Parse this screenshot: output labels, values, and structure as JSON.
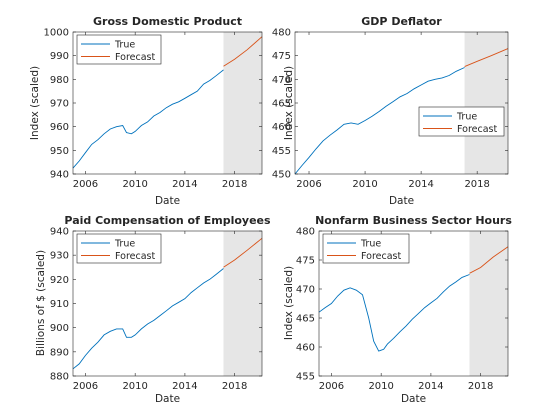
{
  "chart_data": [
    {
      "type": "line",
      "title": "Gross Domestic Product",
      "xlabel": "Date",
      "ylabel": "Index (scaled)",
      "xlim": [
        2005,
        2020.2
      ],
      "ylim": [
        940,
        1000
      ],
      "xticks": [
        2006,
        2010,
        2014,
        2018
      ],
      "yticks": [
        940,
        950,
        960,
        970,
        980,
        990,
        1000
      ],
      "shade_x": [
        2017.1,
        2020.2
      ],
      "legend": {
        "position": "top-left",
        "entries": [
          "True",
          "Forecast"
        ]
      },
      "colors": {
        "True": "#0072bd",
        "Forecast": "#d95319",
        "shade": "#e6e6e6"
      },
      "series": [
        {
          "name": "True",
          "points": [
            [
              2005.0,
              942.5
            ],
            [
              2005.5,
              945.5
            ],
            [
              2006.0,
              949
            ],
            [
              2006.5,
              952.5
            ],
            [
              2007.0,
              954.5
            ],
            [
              2007.5,
              957
            ],
            [
              2008.0,
              959
            ],
            [
              2008.5,
              960
            ],
            [
              2009.0,
              960.5
            ],
            [
              2009.3,
              957.5
            ],
            [
              2009.7,
              957
            ],
            [
              2010.0,
              958
            ],
            [
              2010.5,
              960.5
            ],
            [
              2011.0,
              962
            ],
            [
              2011.5,
              964.5
            ],
            [
              2012.0,
              966
            ],
            [
              2012.5,
              968
            ],
            [
              2013.0,
              969.5
            ],
            [
              2013.5,
              970.5
            ],
            [
              2014.0,
              972
            ],
            [
              2014.5,
              973.5
            ],
            [
              2015.0,
              975
            ],
            [
              2015.5,
              978
            ],
            [
              2016.0,
              979.5
            ],
            [
              2016.5,
              981.5
            ],
            [
              2017.1,
              984
            ]
          ]
        },
        {
          "name": "Forecast",
          "points": [
            [
              2017.1,
              985.5
            ],
            [
              2018.0,
              988.5
            ],
            [
              2019.0,
              992.5
            ],
            [
              2020.2,
              998
            ]
          ]
        }
      ]
    },
    {
      "type": "line",
      "title": "GDP Deflator",
      "xlabel": "Date",
      "ylabel": "Index (scaled)",
      "xlim": [
        2005,
        2020.2
      ],
      "ylim": [
        450,
        480
      ],
      "xticks": [
        2006,
        2010,
        2014,
        2018
      ],
      "yticks": [
        450,
        455,
        460,
        465,
        470,
        475,
        480
      ],
      "shade_x": [
        2017.1,
        2020.2
      ],
      "legend": {
        "position": "right",
        "entries": [
          "True",
          "Forecast"
        ]
      },
      "colors": {
        "True": "#0072bd",
        "Forecast": "#d95319",
        "shade": "#e6e6e6"
      },
      "series": [
        {
          "name": "True",
          "points": [
            [
              2005.0,
              450
            ],
            [
              2005.5,
              451.8
            ],
            [
              2006.0,
              453.5
            ],
            [
              2006.5,
              455.3
            ],
            [
              2007.0,
              457
            ],
            [
              2007.5,
              458.2
            ],
            [
              2008.0,
              459.3
            ],
            [
              2008.5,
              460.5
            ],
            [
              2009.0,
              460.8
            ],
            [
              2009.5,
              460.5
            ],
            [
              2010.0,
              461.3
            ],
            [
              2010.5,
              462.2
            ],
            [
              2011.0,
              463.2
            ],
            [
              2011.5,
              464.3
            ],
            [
              2012.0,
              465.3
            ],
            [
              2012.5,
              466.3
            ],
            [
              2013.0,
              467
            ],
            [
              2013.5,
              468
            ],
            [
              2014.0,
              468.8
            ],
            [
              2014.5,
              469.6
            ],
            [
              2015.0,
              470
            ],
            [
              2015.5,
              470.3
            ],
            [
              2016.0,
              470.8
            ],
            [
              2016.5,
              471.7
            ],
            [
              2017.1,
              472.5
            ]
          ]
        },
        {
          "name": "Forecast",
          "points": [
            [
              2017.1,
              472.7
            ],
            [
              2018.0,
              473.8
            ],
            [
              2019.0,
              475
            ],
            [
              2020.2,
              476.5
            ]
          ]
        }
      ]
    },
    {
      "type": "line",
      "title": "Paid Compensation of Employees",
      "xlabel": "Date",
      "ylabel": "Billions of $ (scaled)",
      "xlim": [
        2005,
        2020.2
      ],
      "ylim": [
        880,
        940
      ],
      "xticks": [
        2006,
        2010,
        2014,
        2018
      ],
      "yticks": [
        880,
        890,
        900,
        910,
        920,
        930,
        940
      ],
      "shade_x": [
        2017.1,
        2020.2
      ],
      "legend": {
        "position": "top-left",
        "entries": [
          "True",
          "Forecast"
        ]
      },
      "colors": {
        "True": "#0072bd",
        "Forecast": "#d95319",
        "shade": "#e6e6e6"
      },
      "series": [
        {
          "name": "True",
          "points": [
            [
              2005.0,
              883
            ],
            [
              2005.5,
              885
            ],
            [
              2006.0,
              888.5
            ],
            [
              2006.5,
              891.5
            ],
            [
              2007.0,
              894
            ],
            [
              2007.5,
              897
            ],
            [
              2008.0,
              898.5
            ],
            [
              2008.5,
              899.5
            ],
            [
              2009.0,
              899.5
            ],
            [
              2009.3,
              896
            ],
            [
              2009.7,
              896
            ],
            [
              2010.0,
              897
            ],
            [
              2010.5,
              899.5
            ],
            [
              2011.0,
              901.5
            ],
            [
              2011.5,
              903
            ],
            [
              2012.0,
              905
            ],
            [
              2012.5,
              907
            ],
            [
              2013.0,
              909
            ],
            [
              2013.5,
              910.5
            ],
            [
              2014.0,
              912
            ],
            [
              2014.5,
              914.5
            ],
            [
              2015.0,
              916.5
            ],
            [
              2015.5,
              918.5
            ],
            [
              2016.0,
              920
            ],
            [
              2016.5,
              922
            ],
            [
              2017.1,
              924.5
            ]
          ]
        },
        {
          "name": "Forecast",
          "points": [
            [
              2017.1,
              925
            ],
            [
              2018.0,
              928
            ],
            [
              2019.0,
              932
            ],
            [
              2020.2,
              937
            ]
          ]
        }
      ]
    },
    {
      "type": "line",
      "title": "Nonfarm Business Sector Hours",
      "xlabel": "Date",
      "ylabel": "Index (scaled)",
      "xlim": [
        2005,
        2020.2
      ],
      "ylim": [
        455,
        480
      ],
      "xticks": [
        2006,
        2010,
        2014,
        2018
      ],
      "yticks": [
        455,
        460,
        465,
        470,
        475,
        480
      ],
      "shade_x": [
        2017.1,
        2020.2
      ],
      "legend": {
        "position": "top-left",
        "entries": [
          "True",
          "Forecast"
        ]
      },
      "colors": {
        "True": "#0072bd",
        "Forecast": "#d95319",
        "shade": "#e6e6e6"
      },
      "series": [
        {
          "name": "True",
          "points": [
            [
              2005.0,
              466
            ],
            [
              2005.5,
              466.8
            ],
            [
              2006.0,
              467.5
            ],
            [
              2006.5,
              468.8
            ],
            [
              2007.0,
              469.8
            ],
            [
              2007.5,
              470.2
            ],
            [
              2008.0,
              469.8
            ],
            [
              2008.5,
              469
            ],
            [
              2009.0,
              465
            ],
            [
              2009.4,
              461
            ],
            [
              2009.8,
              459.3
            ],
            [
              2010.2,
              459.6
            ],
            [
              2010.5,
              460.5
            ],
            [
              2011.0,
              461.5
            ],
            [
              2011.5,
              462.6
            ],
            [
              2012.0,
              463.6
            ],
            [
              2012.5,
              464.8
            ],
            [
              2013.0,
              465.8
            ],
            [
              2013.5,
              466.8
            ],
            [
              2014.0,
              467.6
            ],
            [
              2014.5,
              468.4
            ],
            [
              2015.0,
              469.5
            ],
            [
              2015.5,
              470.5
            ],
            [
              2016.0,
              471.2
            ],
            [
              2016.5,
              472
            ],
            [
              2017.1,
              472.5
            ]
          ]
        },
        {
          "name": "Forecast",
          "points": [
            [
              2017.1,
              472.7
            ],
            [
              2018.0,
              473.7
            ],
            [
              2019.0,
              475.5
            ],
            [
              2020.2,
              477.3
            ]
          ]
        }
      ]
    }
  ]
}
